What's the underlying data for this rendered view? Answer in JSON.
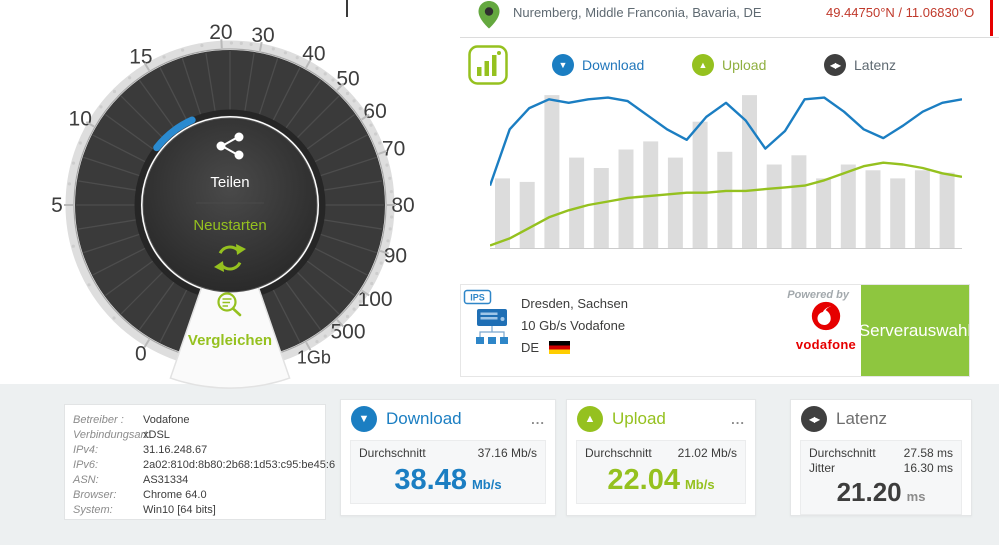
{
  "colors": {
    "blue": "#1b7ec2",
    "green": "#95c11f",
    "vodafone_red": "#e60000",
    "dark": "#3c3c3b",
    "bar_gray": "#dcdcdc"
  },
  "location": {
    "place": "Nuremberg, Middle Franconia, Bavaria, DE",
    "coordinates": "49.44750°N / 11.06830°O"
  },
  "gauge": {
    "labels": [
      "0",
      "5",
      "10",
      "15",
      "20",
      "30",
      "40",
      "50",
      "60",
      "70",
      "80",
      "90",
      "100",
      "500",
      "1Gb"
    ],
    "share_label": "Teilen",
    "restart_label": "Neustarten",
    "compare_label": "Vergleichen"
  },
  "legend": {
    "download": "Download",
    "upload": "Upload",
    "latency": "Latenz"
  },
  "chart_data": {
    "type": "mixed",
    "legend": [
      "Download",
      "Upload",
      "Latenz"
    ],
    "legend_position": "top",
    "grid": false,
    "bars": {
      "name": "Latenz",
      "unit": "ms",
      "color": "#dcdcdc",
      "ymax": 140,
      "values": [
        61,
        58,
        133,
        79,
        70,
        86,
        93,
        79,
        110,
        84,
        133,
        73,
        81,
        61,
        73,
        68,
        61,
        68,
        66
      ]
    },
    "series": [
      {
        "name": "Download",
        "unit": "Mb/s",
        "color": "#1b7ec2",
        "ymax": 46,
        "values": [
          18,
          34,
          40,
          42.5,
          41.5,
          42.5,
          43,
          42,
          38,
          34,
          31,
          37.5,
          41.5,
          36.5,
          28.5,
          33.5,
          42.5,
          43,
          39,
          34,
          31.5,
          35,
          39,
          41.5,
          42.5
        ]
      },
      {
        "name": "Upload",
        "unit": "Mb/s",
        "color": "#95c11f",
        "ymax": 46,
        "values": [
          1,
          3,
          6,
          9,
          11,
          12.5,
          13.5,
          14.5,
          15,
          15.5,
          16,
          16,
          16.5,
          16.5,
          17,
          17.5,
          18,
          19.5,
          21.5,
          23.5,
          24.5,
          24,
          23,
          21.5,
          20.5
        ]
      }
    ]
  },
  "server": {
    "icon_label": "IPS",
    "name": "Dresden, Sachsen",
    "connection": "10 Gb/s Vodafone",
    "country_code": "DE",
    "powered_by": "Powered by",
    "brand": "vodafone",
    "select_button": "Serverauswahl"
  },
  "details": {
    "rows": [
      {
        "label": "Betreiber :",
        "value": "Vodafone"
      },
      {
        "label": "Verbindungsart:",
        "value": "xDSL"
      },
      {
        "label": "IPv4:",
        "value": "31.16.248.67"
      },
      {
        "label": "IPv6:",
        "value": "2a02:810d:8b80:2b68:1d53:c95:be45:6"
      },
      {
        "label": "ASN:",
        "value": "AS31334"
      },
      {
        "label": "Browser:",
        "value": "Chrome 64.0"
      },
      {
        "label": "System:",
        "value": "Win10 [64 bits]"
      }
    ]
  },
  "results": {
    "download": {
      "title": "Download",
      "menu": "...",
      "avg_label": "Durchschnitt",
      "avg": "37.16 Mb/s",
      "value": "38.48",
      "unit": "Mb/s"
    },
    "upload": {
      "title": "Upload",
      "menu": "...",
      "avg_label": "Durchschnitt",
      "avg": "21.02 Mb/s",
      "value": "22.04",
      "unit": "Mb/s"
    },
    "latency": {
      "title": "Latenz",
      "avg_label": "Durchschnitt",
      "avg": "27.58 ms",
      "jitter_label": "Jitter",
      "jitter": "16.30 ms",
      "value": "21.20",
      "unit": "ms"
    }
  }
}
